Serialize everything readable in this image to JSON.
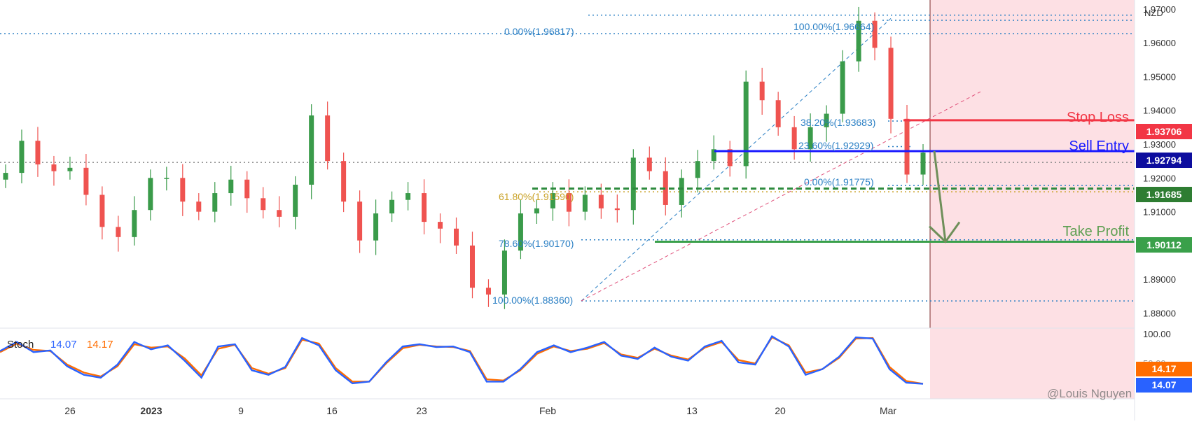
{
  "currency": "NZD",
  "watermark": "@Louis Nguyen",
  "colors": {
    "up": "#26a69a",
    "upCandle": "#3a9b4a",
    "down": "#ef5350",
    "fib": "#2a7fc4",
    "fib618": "#c9a227",
    "stopLoss": "#f23645",
    "sellEntry": "#1a1aff",
    "support": "#2e8b3e",
    "takeProfit": "#3aa04a",
    "projection": "#6f8f5a",
    "zone": "#fde0e4",
    "stochK": "#2962ff",
    "stochD": "#ff6d00"
  },
  "price_axis": {
    "ticks": [
      "1.97000",
      "1.96000",
      "1.95000",
      "1.94000",
      "1.93000",
      "1.92000",
      "1.91000",
      "1.90000",
      "1.89000",
      "1.88000"
    ]
  },
  "stoch_axis": {
    "ticks": [
      "100.00",
      "50.00"
    ]
  },
  "date_axis": {
    "labels": [
      {
        "text": "26",
        "bold": false
      },
      {
        "text": "2023",
        "bold": true
      },
      {
        "text": "9",
        "bold": false
      },
      {
        "text": "16",
        "bold": false
      },
      {
        "text": "23",
        "bold": false
      },
      {
        "text": "Feb",
        "bold": false
      },
      {
        "text": "13",
        "bold": false
      },
      {
        "text": "20",
        "bold": false
      },
      {
        "text": "Mar",
        "bold": false
      }
    ]
  },
  "levels": {
    "stop_loss": {
      "label": "Stop Loss",
      "price": "1.93706"
    },
    "sell_entry": {
      "label": "Sell Entry",
      "price": "1.92794"
    },
    "support": {
      "price": "1.91685"
    },
    "take_profit": {
      "label": "Take Profit",
      "price": "1.90112"
    }
  },
  "fib_labels": {
    "f0_top": "0.00%(1.96817)",
    "f100_top": "100.00%(1.96664)",
    "f382": "38.20%(1.93683)",
    "f236": "23.60%(1.92929)",
    "f0_mid": "0.00%(1.91775)",
    "f618": "61.80%(1.91590)",
    "f786": "78.60%(1.90170)",
    "f100_bot": "100.00%(1.88360)"
  },
  "stoch": {
    "label": "Stoch",
    "k": "14.07",
    "d": "14.17"
  },
  "chart_data": {
    "type": "line",
    "title": "",
    "series": [
      {
        "name": "NZD",
        "values": [
          1.9215,
          1.931,
          1.924,
          1.922,
          1.923,
          1.915,
          1.9055,
          1.9025,
          1.9105,
          1.92,
          1.92,
          1.913,
          1.91,
          1.9155,
          1.9195,
          1.914,
          1.9105,
          1.9085,
          1.918,
          1.9385,
          1.925,
          1.913,
          1.9015,
          1.9095,
          1.9135,
          1.9155,
          1.907,
          1.905,
          1.9,
          1.8875,
          1.8855,
          1.8985,
          1.9095,
          1.911,
          1.9155,
          1.91,
          1.915,
          1.911,
          1.9105,
          1.926,
          1.922,
          1.912,
          1.92,
          1.925,
          1.9285,
          1.9235,
          1.9485,
          1.943,
          1.935,
          1.9285,
          1.935,
          1.939,
          1.9545,
          1.9665,
          1.9585,
          1.9375,
          1.921,
          1.9275
        ]
      }
    ],
    "stochastic": {
      "k": [
        72,
        88,
        70,
        73,
        45,
        30,
        25,
        48,
        88,
        75,
        82,
        55,
        25,
        80,
        84,
        38,
        30,
        44,
        95,
        82,
        38,
        15,
        18,
        52,
        80,
        84,
        79,
        80,
        70,
        18,
        18,
        40,
        70,
        82,
        70,
        78,
        88,
        64,
        58,
        78,
        62,
        55,
        80,
        90,
        52,
        48,
        98,
        80,
        30,
        40,
        62,
        96,
        94,
        40,
        16,
        14.07
      ],
      "d": [
        70,
        85,
        74,
        72,
        48,
        34,
        27,
        45,
        84,
        78,
        80,
        59,
        29,
        76,
        83,
        42,
        32,
        42,
        92,
        85,
        42,
        18,
        18,
        50,
        77,
        83,
        80,
        79,
        72,
        22,
        20,
        38,
        67,
        80,
        72,
        76,
        86,
        66,
        60,
        76,
        64,
        57,
        78,
        88,
        56,
        50,
        96,
        82,
        34,
        40,
        60,
        94,
        95,
        44,
        19,
        14.17
      ]
    },
    "ylim": [
      1.877,
      1.971
    ],
    "grid": false
  }
}
